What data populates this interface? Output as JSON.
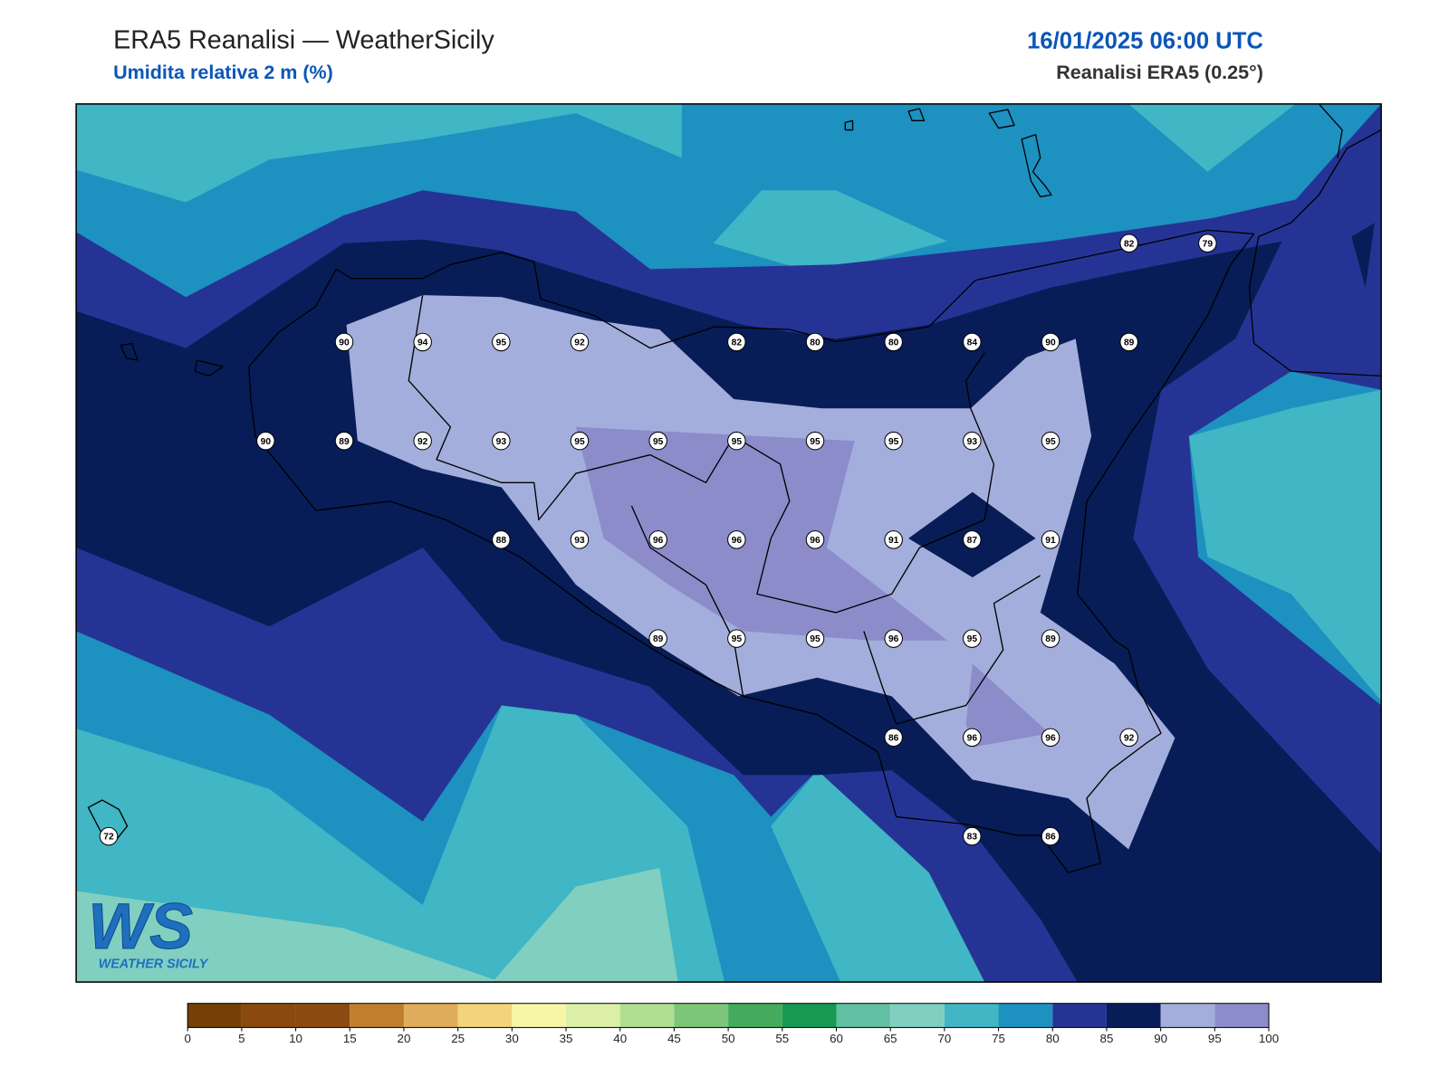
{
  "header": {
    "title": "ERA5 Reanalisi — WeatherSicily",
    "subtitle": "Umidita relativa 2 m (%)",
    "datetime": "16/01/2025 06:00 UTC",
    "source": "Reanalisi ERA5 (0.25°)"
  },
  "stations": [
    {
      "value": 82
    },
    {
      "value": 79
    },
    {
      "value": 90
    },
    {
      "value": 94
    },
    {
      "value": 95
    },
    {
      "value": 92
    },
    {
      "value": 82
    },
    {
      "value": 80
    },
    {
      "value": 80
    },
    {
      "value": 84
    },
    {
      "value": 90
    },
    {
      "value": 89
    },
    {
      "value": 90
    },
    {
      "value": 89
    },
    {
      "value": 92
    },
    {
      "value": 93
    },
    {
      "value": 95
    },
    {
      "value": 95
    },
    {
      "value": 95
    },
    {
      "value": 95
    },
    {
      "value": 95
    },
    {
      "value": 93
    },
    {
      "value": 95
    },
    {
      "value": 88
    },
    {
      "value": 93
    },
    {
      "value": 96
    },
    {
      "value": 96
    },
    {
      "value": 96
    },
    {
      "value": 91
    },
    {
      "value": 87
    },
    {
      "value": 91
    },
    {
      "value": 89
    },
    {
      "value": 95
    },
    {
      "value": 95
    },
    {
      "value": 96
    },
    {
      "value": 95
    },
    {
      "value": 89
    },
    {
      "value": 86
    },
    {
      "value": 96
    },
    {
      "value": 96
    },
    {
      "value": 92
    },
    {
      "value": 72
    },
    {
      "value": 83
    },
    {
      "value": 86
    }
  ],
  "colorbar": {
    "ticks": [
      0,
      5,
      10,
      15,
      20,
      25,
      30,
      35,
      40,
      45,
      50,
      55,
      60,
      65,
      70,
      75,
      80,
      85,
      90,
      95,
      100
    ],
    "colors": [
      "#744006",
      "#8a4a0e",
      "#8c4b10",
      "#c17f2e",
      "#e0ad5c",
      "#f2d47c",
      "#f7f5a6",
      "#dcefa6",
      "#b0df91",
      "#7cc67a",
      "#43aa5e",
      "#189a52",
      "#62c1a2",
      "#80cfc0",
      "#41b6c4",
      "#1d91c0",
      "#253494",
      "#081d58",
      "#a4aedc",
      "#8c8ccb"
    ]
  },
  "logo": {
    "mark": "WS",
    "text": "WEATHER SICILY"
  }
}
